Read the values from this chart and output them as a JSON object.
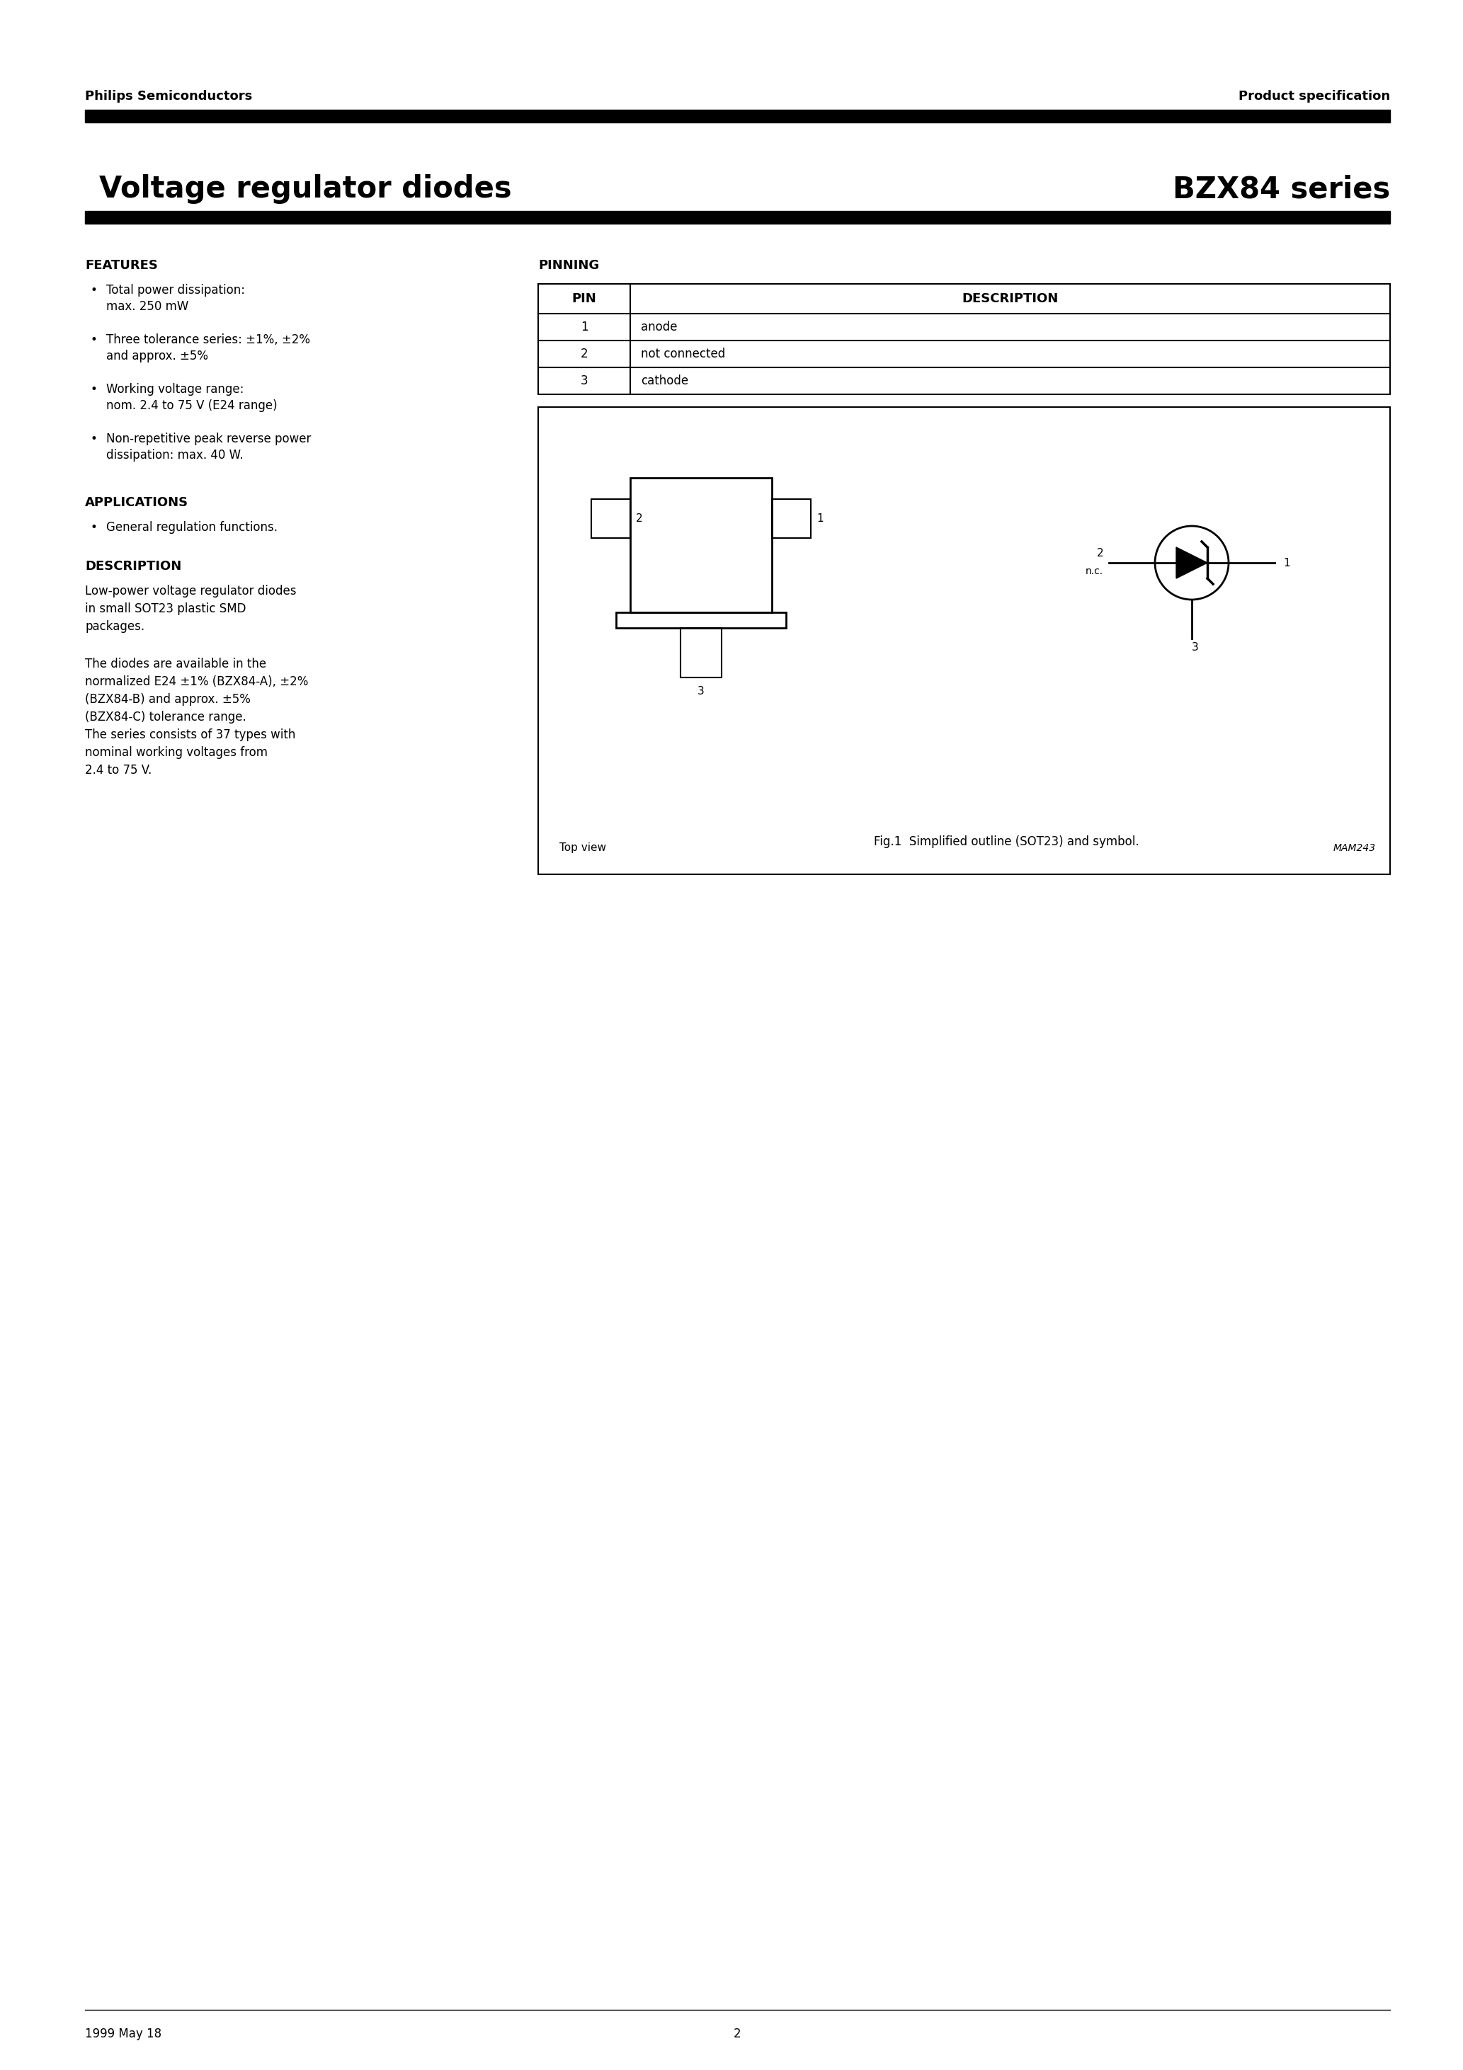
{
  "page_title_left": "Voltage regulator diodes",
  "page_title_right": "BZX84 series",
  "header_left": "Philips Semiconductors",
  "header_right": "Product specification",
  "footer_left": "1999 May 18",
  "footer_center": "2",
  "features_title": "FEATURES",
  "features_bullets": [
    "Total power dissipation:\nmax. 250 mW",
    "Three tolerance series: ±1%, ±2%\nand approx. ±5%",
    "Working voltage range:\nnom. 2.4 to 75 V (E24 range)",
    "Non-repetitive peak reverse power\ndissipation: max. 40 W."
  ],
  "applications_title": "APPLICATIONS",
  "applications_bullets": [
    "General regulation functions."
  ],
  "description_title": "DESCRIPTION",
  "description_text1": "Low-power voltage regulator diodes\nin small SOT23 plastic SMD\npackages.",
  "description_text2": "The diodes are available in the\nnormalized E24 ±1% (BZX84-A), ±2%\n(BZX84-B) and approx. ±5%\n(BZX84-C) tolerance range.\nThe series consists of 37 types with\nnominal working voltages from\n2.4 to 75 V.",
  "pinning_title": "PINNING",
  "pin_table_headers": [
    "PIN",
    "DESCRIPTION"
  ],
  "pin_table_rows": [
    [
      "1",
      "anode"
    ],
    [
      "2",
      "not connected"
    ],
    [
      "3",
      "cathode"
    ]
  ],
  "fig_caption": "Fig.1  Simplified outline (SOT23) and symbol.",
  "fig_label_topview": "Top view",
  "fig_label_mamnum": "MAM243",
  "bg_color": "#ffffff",
  "text_color": "#000000",
  "bar_color": "#000000"
}
